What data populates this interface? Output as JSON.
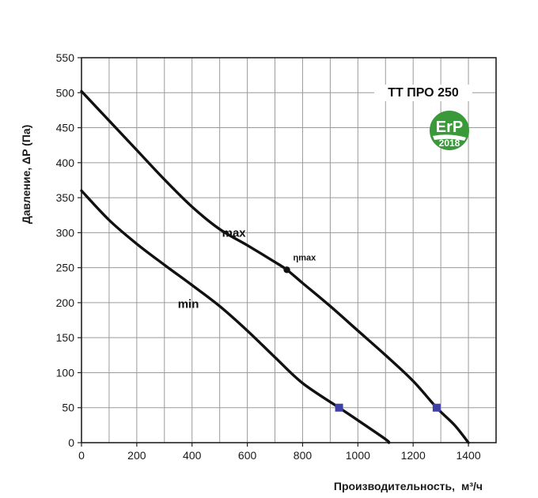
{
  "chart_data": {
    "type": "line",
    "title": "ТТ ПРО 250",
    "xlabel": "Производительность,",
    "xlabel_unit": "м³/ч",
    "ylabel": "Давление, ΔP (Па)",
    "xlim": [
      0,
      1500
    ],
    "ylim": [
      0,
      550
    ],
    "x_ticks": [
      0,
      200,
      400,
      600,
      800,
      1000,
      1200,
      1400
    ],
    "y_ticks": [
      0,
      50,
      100,
      150,
      200,
      250,
      300,
      350,
      400,
      450,
      500,
      550
    ],
    "x_grid_step": 100,
    "y_grid_step": 50,
    "grid": true,
    "series": [
      {
        "name": "max",
        "points": [
          [
            0,
            502
          ],
          [
            100,
            460
          ],
          [
            200,
            418
          ],
          [
            300,
            376
          ],
          [
            400,
            337
          ],
          [
            500,
            305
          ],
          [
            600,
            282
          ],
          [
            700,
            258
          ],
          [
            743,
            247
          ],
          [
            800,
            228
          ],
          [
            900,
            195
          ],
          [
            1000,
            160
          ],
          [
            1100,
            125
          ],
          [
            1200,
            88
          ],
          [
            1285,
            50
          ],
          [
            1350,
            25
          ],
          [
            1400,
            0
          ]
        ]
      },
      {
        "name": "min",
        "points": [
          [
            0,
            360
          ],
          [
            100,
            318
          ],
          [
            200,
            284
          ],
          [
            300,
            254
          ],
          [
            400,
            225
          ],
          [
            500,
            195
          ],
          [
            600,
            160
          ],
          [
            700,
            122
          ],
          [
            800,
            85
          ],
          [
            932,
            50
          ],
          [
            1000,
            32
          ],
          [
            1100,
            5
          ],
          [
            1112,
            0
          ]
        ]
      }
    ],
    "annotations": [
      {
        "label": "ηmax",
        "x": 743,
        "y": 247,
        "marker": "circle"
      }
    ],
    "markers": [
      {
        "x": 932,
        "y": 50,
        "shape": "square",
        "color": "#3f3fa8"
      },
      {
        "x": 1285,
        "y": 50,
        "shape": "square",
        "color": "#3f3fa8"
      }
    ],
    "logo": {
      "text": "ErP",
      "year": "2018",
      "color": "#3a9a3a"
    }
  }
}
